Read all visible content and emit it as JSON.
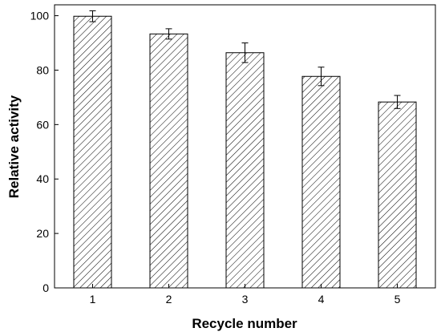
{
  "chart_data": {
    "type": "bar",
    "xlabel": "Recycle number",
    "ylabel": "Relative activity",
    "categories": [
      "1",
      "2",
      "3",
      "4",
      "5"
    ],
    "values": [
      99.8,
      93.3,
      86.4,
      77.7,
      68.3
    ],
    "errors": [
      2.0,
      1.9,
      3.6,
      3.4,
      2.4
    ],
    "ylim": [
      0,
      104
    ],
    "yticks": [
      0,
      20,
      40,
      60,
      80,
      100
    ],
    "ytick_labels": [
      "0",
      "20",
      "40",
      "60",
      "80",
      "100"
    ],
    "grid": false,
    "legend": "none",
    "bar_fill": "diagonal-hatch",
    "bar_color": "#000000"
  }
}
